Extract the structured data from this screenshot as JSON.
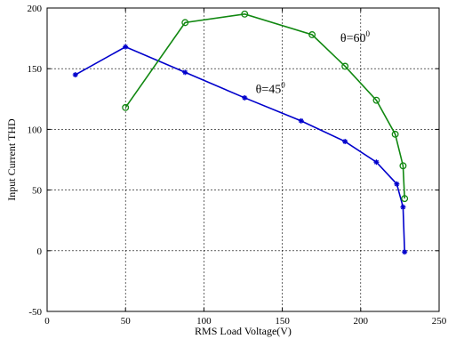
{
  "chart_data": {
    "type": "line",
    "title": "",
    "xlabel": "RMS Load Voltage(V)",
    "ylabel": "Input Current THD",
    "xlim": [
      0,
      250
    ],
    "ylim": [
      -50,
      200
    ],
    "xticks": [
      0,
      50,
      100,
      150,
      200,
      250
    ],
    "yticks": [
      -50,
      0,
      50,
      100,
      150,
      200
    ],
    "grid": true,
    "series": [
      {
        "color": "#0000cc",
        "marker": "star",
        "x": [
          18,
          50,
          88,
          126,
          162,
          190,
          210,
          223,
          227,
          228
        ],
        "y": [
          145,
          168,
          147,
          126,
          107,
          90,
          73,
          55,
          36,
          -1
        ]
      },
      {
        "color": "#118811",
        "marker": "circle",
        "x": [
          50,
          88,
          126,
          169,
          190,
          210,
          222,
          227,
          228
        ],
        "y": [
          118,
          188,
          195,
          178,
          152,
          124,
          96,
          70,
          43
        ]
      }
    ],
    "annotations": [
      {
        "text": "θ=60",
        "sup": "0",
        "x": 187,
        "y": 172
      },
      {
        "text": "θ=45",
        "sup": "0",
        "x": 133,
        "y": 130
      }
    ]
  }
}
